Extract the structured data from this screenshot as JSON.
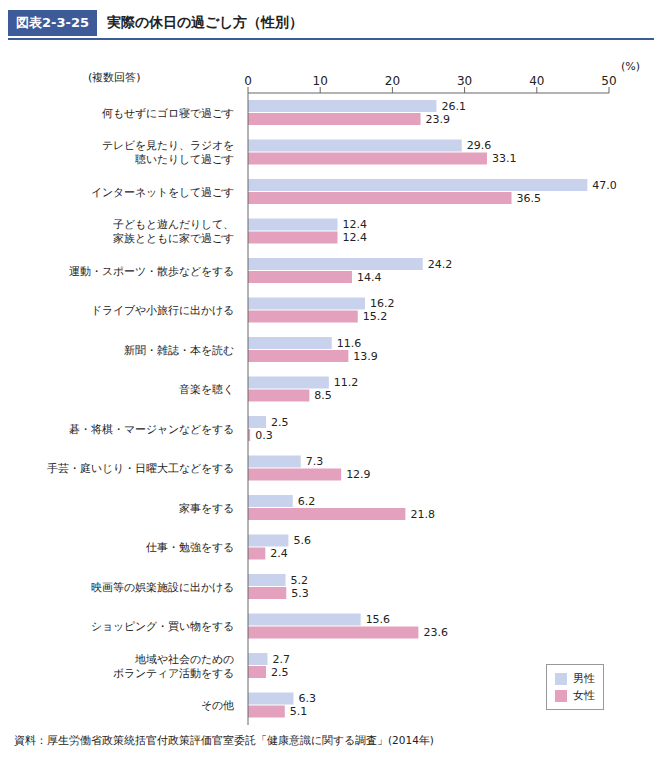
{
  "chart_data": {
    "type": "bar",
    "orientation": "horizontal",
    "title": "実際の休日の過ごし方（性別）",
    "subtitle": "図表2-3-25",
    "x_label": "(%)",
    "annotations": [
      "(複数回答)",
      "資料：厚生労働省政策統括官付政策評価官室委託「健康意識に関する調査」(2014年)"
    ],
    "categories": [
      "何もせずにゴロ寝で過ごす",
      "テレビを見たり、ラジオを\n聴いたりして過ごす",
      "インターネットをして過ごす",
      "子どもと遊んだりして、\n家族とともに家で過ごす",
      "運動・スポーツ・散歩などをする",
      "ドライブや小旅行に出かける",
      "新聞・雑誌・本を読む",
      "音楽を聴く",
      "碁・将棋・マージャンなどをする",
      "手芸・庭いじり・日曜大工などをする",
      "家事をする",
      "仕事・勉強をする",
      "映画等の娯楽施設に出かける",
      "ショッピング・買い物をする",
      "地域や社会のための\nボランティア活動をする",
      "その他"
    ],
    "series": [
      {
        "name": "男性",
        "color": "#c8d2ec",
        "values": [
          26.1,
          29.6,
          47.0,
          12.4,
          24.2,
          16.2,
          11.6,
          11.2,
          2.5,
          7.3,
          6.2,
          5.6,
          5.2,
          15.6,
          2.7,
          6.3
        ],
        "value_labels": [
          "26.1",
          "29.6",
          "47.0",
          "12.4",
          "24.2",
          "16.2",
          "11.6",
          "11.2",
          "2.5",
          "7.3",
          "6.2",
          "5.6",
          "5.2",
          "15.6",
          "2.7",
          "6.3"
        ]
      },
      {
        "name": "女性",
        "color": "#e3a1bd",
        "values": [
          23.9,
          33.1,
          36.5,
          12.4,
          14.4,
          15.2,
          13.9,
          8.5,
          0.3,
          12.9,
          21.8,
          2.4,
          5.3,
          23.6,
          2.5,
          5.1
        ],
        "value_labels": [
          "23.9",
          "33.1",
          "36.5",
          "12.4",
          "14.4",
          "15.2",
          "13.9",
          "8.5",
          "0.3",
          "12.9",
          "21.8",
          "2.4",
          "5.3",
          "23.6",
          "2.5",
          "5.1"
        ]
      }
    ],
    "xlim": [
      0,
      50
    ],
    "xticks": [
      0,
      10,
      20,
      30,
      40,
      50
    ],
    "grid": false,
    "data_labels": true,
    "legend": "lower right"
  }
}
